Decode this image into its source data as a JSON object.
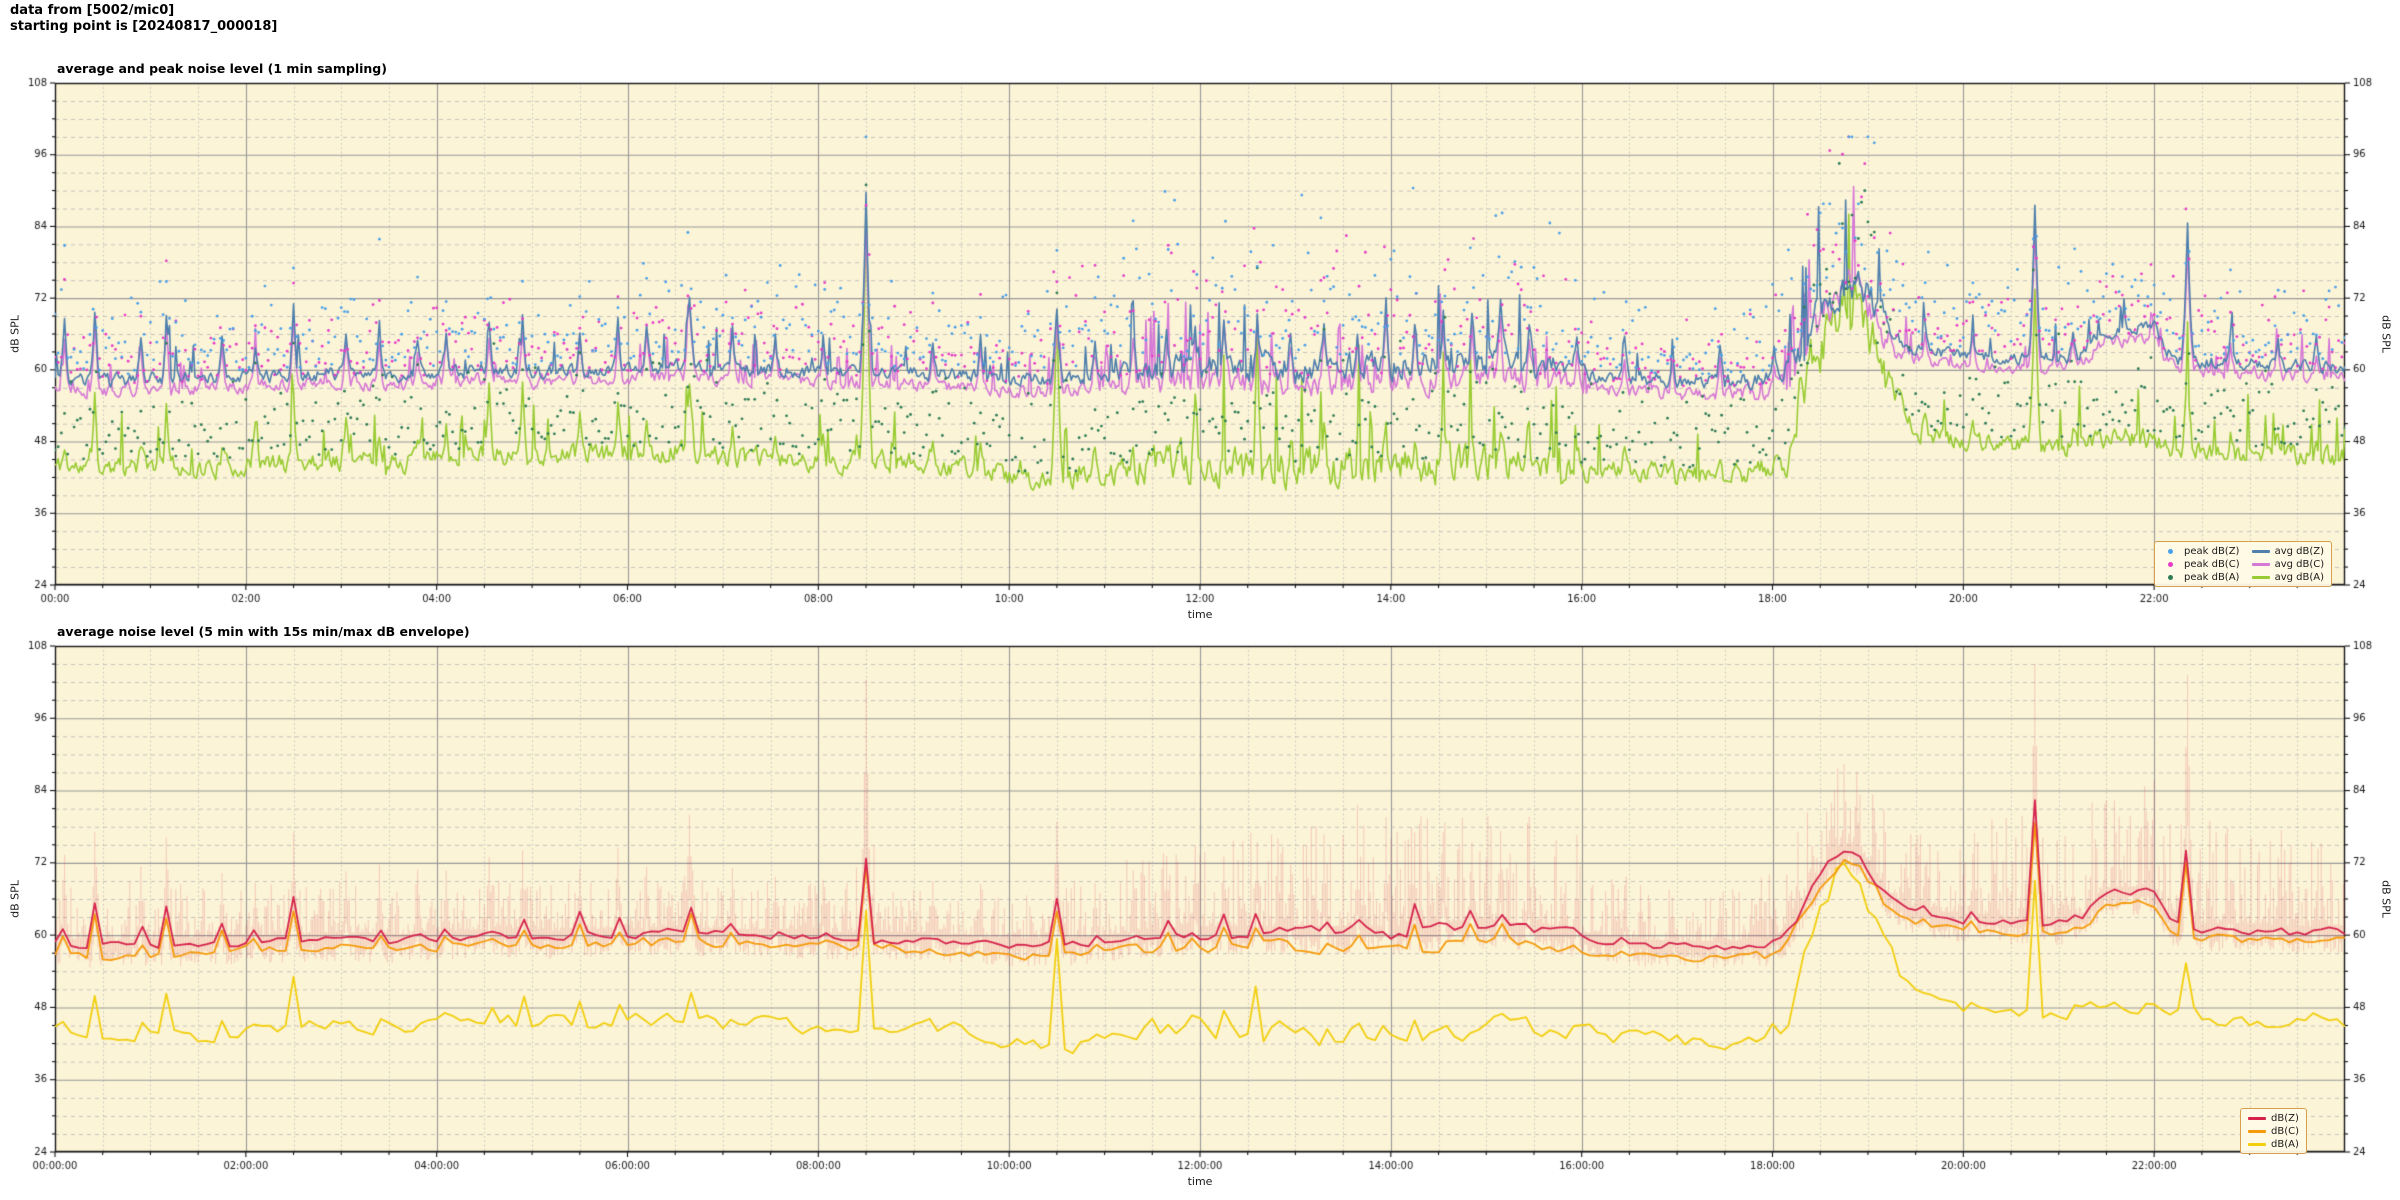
{
  "header": {
    "line1": "data from [5002/mic0]",
    "line2": "starting point is [20240817_000018]"
  },
  "colors": {
    "figure_bg": "#ffffff",
    "axes_bg": "#fcf4d7",
    "grid_major": "#989898",
    "grid_minor": "#b7b7b7",
    "spine": "#141414",
    "tick_text": "#1a1a1a",
    "avg_z": "#4e7fad",
    "avg_c": "#d678d6",
    "avg_a": "#99cc33",
    "peak_z": "#4aa0e8",
    "peak_c": "#e63cc8",
    "peak_a": "#2e7d55",
    "bot_z": "#d6234c",
    "bot_c": "#f59b0b",
    "bot_a": "#f2cf0e",
    "envelope": "rgba(214,50,76,0.20)",
    "legend_border": "#d79f4d",
    "legend_bg": "#fffae6"
  },
  "chart_data": [
    {
      "type": "line+scatter",
      "title": "average and peak noise level (1 min sampling)",
      "xlabel": "time",
      "ylabel_left": "dB SPL",
      "ylabel_right": "dB SPL",
      "ylim": [
        24,
        108
      ],
      "xlim_hours": [
        0,
        24
      ],
      "y_ticks": [
        24,
        36,
        48,
        60,
        72,
        84,
        96,
        108
      ],
      "y_minor_step": 3,
      "x_tick_hours": [
        0,
        2,
        4,
        6,
        8,
        10,
        12,
        14,
        16,
        18,
        20,
        22
      ],
      "x_tick_labels": [
        "00:00",
        "02:00",
        "04:00",
        "06:00",
        "08:00",
        "10:00",
        "12:00",
        "14:00",
        "16:00",
        "18:00",
        "20:00",
        "22:00"
      ],
      "x_minor_step_hours": 0.5,
      "grid": {
        "major": true,
        "minor": true
      },
      "legend": {
        "position": "lower right",
        "entries": [
          {
            "type": "dot",
            "color_key": "peak_z",
            "label": "peak dB(Z)"
          },
          {
            "type": "line",
            "color_key": "avg_z",
            "label": "avg dB(Z)"
          },
          {
            "type": "dot",
            "color_key": "peak_c",
            "label": "peak dB(C)"
          },
          {
            "type": "line",
            "color_key": "avg_c",
            "label": "avg dB(C)"
          },
          {
            "type": "dot",
            "color_key": "peak_a",
            "label": "peak dB(A)"
          },
          {
            "type": "line",
            "color_key": "avg_a",
            "label": "avg dB(A)"
          }
        ]
      },
      "series": [
        {
          "name": "avg dB(Z)",
          "style": "line",
          "color_key": "avg_z",
          "channel": "z"
        },
        {
          "name": "avg dB(C)",
          "style": "line",
          "color_key": "avg_c",
          "channel": "c"
        },
        {
          "name": "avg dB(A)",
          "style": "line",
          "color_key": "avg_a",
          "channel": "a"
        },
        {
          "name": "peak dB(Z)",
          "style": "scatter",
          "color_key": "peak_z",
          "channel": "z"
        },
        {
          "name": "peak dB(C)",
          "style": "scatter",
          "color_key": "peak_c",
          "channel": "c"
        },
        {
          "name": "peak dB(A)",
          "style": "scatter",
          "color_key": "peak_a",
          "channel": "a"
        }
      ],
      "sampling_minutes": 1
    },
    {
      "type": "line+band",
      "title": "average noise level (5 min with 15s min/max dB envelope)",
      "xlabel": "time",
      "ylabel_left": "dB SPL",
      "ylabel_right": "dB SPL",
      "ylim": [
        24,
        108
      ],
      "xlim_hours": [
        0,
        24
      ],
      "y_ticks": [
        24,
        36,
        48,
        60,
        72,
        84,
        96,
        108
      ],
      "y_minor_step": 3,
      "x_tick_hours": [
        0,
        2,
        4,
        6,
        8,
        10,
        12,
        14,
        16,
        18,
        20,
        22
      ],
      "x_tick_labels": [
        "00:00:00",
        "02:00:00",
        "04:00:00",
        "06:00:00",
        "08:00:00",
        "10:00:00",
        "12:00:00",
        "14:00:00",
        "16:00:00",
        "18:00:00",
        "20:00:00",
        "22:00:00"
      ],
      "x_minor_step_hours": 0.5,
      "grid": {
        "major": true,
        "minor": true
      },
      "legend": {
        "position": "lower right",
        "entries": [
          {
            "type": "line",
            "color_key": "bot_z",
            "label": "dB(Z)"
          },
          {
            "type": "line",
            "color_key": "bot_c",
            "label": "dB(C)"
          },
          {
            "type": "line",
            "color_key": "bot_a",
            "label": "dB(A)"
          }
        ]
      },
      "series": [
        {
          "name": "dB(Z)",
          "style": "line",
          "color_key": "bot_z",
          "channel": "z"
        },
        {
          "name": "dB(C)",
          "style": "line",
          "color_key": "bot_c",
          "channel": "c"
        },
        {
          "name": "dB(A)",
          "style": "line",
          "color_key": "bot_a",
          "channel": "a"
        }
      ],
      "sampling_minutes": 5,
      "envelope_seconds": 15
    }
  ],
  "noise_model": {
    "comment": "Estimated dB SPL levels read off the plots. baseline: [hour, avg dB(Z), avg dB(C), avg dB(A)]. events: [hour, half-width min, +dB Z, +dB C, +dB A, bottom-chart scale].",
    "baseline": [
      [
        0,
        58.5,
        57,
        44
      ],
      [
        0.5,
        58,
        56.5,
        43.2
      ],
      [
        1,
        58.5,
        56.8,
        44
      ],
      [
        1.5,
        58.5,
        57,
        43.5
      ],
      [
        2,
        59,
        57.5,
        44
      ],
      [
        2.5,
        59,
        57.5,
        44.5
      ],
      [
        3,
        59.5,
        58,
        45
      ],
      [
        3.5,
        59,
        57.5,
        44.5
      ],
      [
        4,
        59.5,
        58,
        45
      ],
      [
        4.5,
        60,
        58.5,
        46
      ],
      [
        5,
        59.5,
        58,
        45.5
      ],
      [
        5.5,
        60,
        58.5,
        46
      ],
      [
        6,
        60,
        58.5,
        46
      ],
      [
        6.5,
        60.5,
        59,
        46.5
      ],
      [
        7,
        60,
        58.5,
        45.5
      ],
      [
        7.5,
        60,
        58.5,
        45
      ],
      [
        8,
        59.5,
        58,
        44.5
      ],
      [
        8.7,
        59.5,
        58,
        44.8
      ],
      [
        9,
        59.5,
        57.5,
        44.5
      ],
      [
        9.5,
        59,
        57,
        44
      ],
      [
        10,
        58.5,
        56.5,
        42
      ],
      [
        10.5,
        58.5,
        56.5,
        41.5
      ],
      [
        11,
        59,
        57,
        42
      ],
      [
        11.5,
        60,
        57.5,
        44
      ],
      [
        12,
        60.5,
        58,
        44.5
      ],
      [
        12.5,
        60.5,
        58,
        44
      ],
      [
        13,
        60.5,
        58,
        43.5
      ],
      [
        13.5,
        60.5,
        58,
        43.5
      ],
      [
        14,
        60.5,
        58,
        43.8
      ],
      [
        14.5,
        61,
        58.5,
        44
      ],
      [
        15,
        61.5,
        59,
        44.5
      ],
      [
        15.4,
        61,
        58.5,
        44
      ],
      [
        15.8,
        60.5,
        58,
        43.8
      ],
      [
        16,
        59.5,
        57,
        43.5
      ],
      [
        16.5,
        58.5,
        56.5,
        43
      ],
      [
        17,
        58,
        56,
        42.5
      ],
      [
        17.5,
        58,
        56,
        42.5
      ],
      [
        18,
        58.5,
        56.5,
        43
      ],
      [
        18.15,
        60,
        58.5,
        45
      ],
      [
        18.3,
        64,
        62.5,
        56
      ],
      [
        18.45,
        68,
        66.5,
        63
      ],
      [
        18.6,
        72,
        70.5,
        68
      ],
      [
        18.75,
        74.5,
        73,
        71.5
      ],
      [
        18.9,
        73.5,
        72,
        70
      ],
      [
        19.05,
        70.5,
        69,
        65
      ],
      [
        19.2,
        66.5,
        65,
        59
      ],
      [
        19.35,
        64.5,
        63,
        53
      ],
      [
        19.5,
        63.5,
        62,
        50
      ],
      [
        19.75,
        63,
        61.5,
        48.5
      ],
      [
        20,
        62.5,
        61,
        48
      ],
      [
        20.25,
        62.5,
        61,
        47.8
      ],
      [
        20.5,
        62,
        60.5,
        47.5
      ],
      [
        21,
        62,
        60.5,
        47
      ],
      [
        21.25,
        62.5,
        61,
        47.5
      ],
      [
        21.45,
        66.5,
        64.5,
        48.5
      ],
      [
        21.6,
        67,
        65,
        48.5
      ],
      [
        22,
        67,
        65,
        48.5
      ],
      [
        22.1,
        64,
        62,
        47.5
      ],
      [
        22.2,
        62,
        60.5,
        47
      ],
      [
        22.5,
        61,
        59.5,
        46.5
      ],
      [
        23,
        61,
        59.5,
        46
      ],
      [
        23.5,
        60.5,
        59,
        45.5
      ],
      [
        24,
        60.5,
        59,
        45.5
      ]
    ],
    "events": [
      [
        0.1,
        3,
        9,
        8.5,
        3,
        0.6
      ],
      [
        0.42,
        3,
        13,
        12.5,
        14,
        0.6
      ],
      [
        0.9,
        3,
        8,
        7.5,
        4,
        0.55
      ],
      [
        1.17,
        3,
        12,
        11.5,
        11,
        0.6
      ],
      [
        1.75,
        3,
        7,
        6.5,
        3,
        0.5
      ],
      [
        2.1,
        3,
        6,
        6,
        8,
        0.5
      ],
      [
        2.5,
        3,
        11,
        10.5,
        13,
        0.6
      ],
      [
        3.05,
        3,
        7,
        7,
        9,
        0.5
      ],
      [
        3.4,
        3,
        8,
        7.5,
        5,
        0.5
      ],
      [
        3.8,
        3,
        6,
        6,
        4,
        0.5
      ],
      [
        4.1,
        3,
        7,
        7,
        6,
        0.5
      ],
      [
        4.55,
        3,
        8,
        8,
        12,
        0.55
      ],
      [
        4.9,
        3,
        9,
        8.5,
        13,
        0.55
      ],
      [
        5.5,
        3,
        7,
        7,
        8,
        0.5
      ],
      [
        5.9,
        3,
        9,
        8.5,
        9,
        0.55
      ],
      [
        6.2,
        3,
        7,
        7,
        6,
        0.5
      ],
      [
        6.65,
        4,
        12,
        11.5,
        13,
        0.6
      ],
      [
        7.1,
        3,
        7,
        7,
        5,
        0.5
      ],
      [
        7.55,
        3,
        6,
        6,
        4,
        0.5
      ],
      [
        8.05,
        3,
        6,
        6,
        5,
        0.5
      ],
      [
        8.5,
        4,
        29.5,
        28,
        43,
        0.47
      ],
      [
        9.2,
        3,
        6,
        6,
        4,
        0.5
      ],
      [
        9.7,
        3,
        6,
        6,
        4,
        0.5
      ],
      [
        10.5,
        4,
        12.5,
        12,
        29,
        0.6
      ],
      [
        10.9,
        3,
        6,
        6,
        5,
        0.5
      ],
      [
        11.3,
        3,
        7,
        7,
        6,
        0.5
      ],
      [
        11.65,
        3,
        8,
        7.5,
        7,
        0.55
      ],
      [
        11.95,
        3,
        9,
        8.5,
        8,
        0.55
      ],
      [
        12.25,
        3,
        8,
        8,
        5,
        0.5
      ],
      [
        12.6,
        3,
        9,
        8.5,
        25,
        0.6
      ],
      [
        12.95,
        3,
        7,
        7,
        5,
        0.5
      ],
      [
        13.3,
        3,
        9,
        8.5,
        6,
        0.55
      ],
      [
        13.65,
        3,
        8,
        8,
        5,
        0.5
      ],
      [
        13.95,
        3,
        9,
        9,
        7,
        0.55
      ],
      [
        14.25,
        3,
        8,
        8,
        6,
        0.5
      ],
      [
        14.55,
        3,
        10,
        9.5,
        8,
        0.55
      ],
      [
        14.85,
        3,
        9,
        8.5,
        6,
        0.5
      ],
      [
        15.15,
        3,
        10,
        9.5,
        9,
        0.55
      ],
      [
        15.45,
        3,
        8,
        8,
        6,
        0.5
      ],
      [
        15.95,
        3,
        7,
        7,
        5,
        0.5
      ],
      [
        16.45,
        3,
        6,
        6,
        4,
        0.5
      ],
      [
        16.95,
        3,
        5,
        5,
        4,
        0.5
      ],
      [
        17.45,
        3,
        5,
        5,
        4,
        0.5
      ],
      [
        18.02,
        3,
        5,
        5,
        4,
        0.5
      ],
      [
        19.6,
        3,
        5,
        5,
        3,
        0.5
      ],
      [
        20.1,
        3,
        5,
        5,
        3,
        0.5
      ],
      [
        20.75,
        4,
        26,
        24,
        27.5,
        0.78
      ],
      [
        21.15,
        3,
        4,
        4,
        3,
        0.5
      ],
      [
        22.35,
        4,
        22,
        21,
        13,
        0.9
      ],
      [
        22.8,
        3,
        5,
        5,
        3,
        0.5
      ],
      [
        23.3,
        3,
        4,
        4,
        3,
        0.5
      ],
      [
        23.7,
        3,
        4,
        4,
        3,
        0.5
      ]
    ],
    "busy": [
      [
        0,
        1
      ],
      [
        8,
        1
      ],
      [
        11,
        1
      ],
      [
        11.5,
        2
      ],
      [
        15.5,
        2
      ],
      [
        16.2,
        0.9
      ],
      [
        18.1,
        1.3
      ],
      [
        18.3,
        2.8
      ],
      [
        19.1,
        2.8
      ],
      [
        19.4,
        1
      ],
      [
        20.4,
        0.9
      ],
      [
        21.4,
        1
      ],
      [
        22,
        1
      ],
      [
        24,
        1
      ]
    ],
    "peak_spread_zc": [
      [
        0,
        5
      ],
      [
        2,
        5.5
      ],
      [
        4,
        5.5
      ],
      [
        6,
        6
      ],
      [
        8,
        6
      ],
      [
        9,
        5.5
      ],
      [
        10,
        6
      ],
      [
        11,
        8
      ],
      [
        11.5,
        10
      ],
      [
        13,
        10.5
      ],
      [
        14,
        10.5
      ],
      [
        15,
        10.5
      ],
      [
        15.8,
        8
      ],
      [
        16.5,
        5
      ],
      [
        17.5,
        4.5
      ],
      [
        18.2,
        10
      ],
      [
        18.6,
        13
      ],
      [
        19.2,
        10
      ],
      [
        19.6,
        5.5
      ],
      [
        20.5,
        5.5
      ],
      [
        21,
        6
      ],
      [
        21.6,
        5
      ],
      [
        22.5,
        6
      ],
      [
        23,
        5.5
      ],
      [
        24,
        5.5
      ]
    ],
    "peak_spread_a": [
      [
        0,
        5
      ],
      [
        4,
        5.5
      ],
      [
        8,
        5.5
      ],
      [
        10,
        6.5
      ],
      [
        11,
        7
      ],
      [
        13,
        7.5
      ],
      [
        15,
        7.5
      ],
      [
        16.5,
        5.5
      ],
      [
        18,
        6
      ],
      [
        18.6,
        10
      ],
      [
        19.2,
        9
      ],
      [
        19.6,
        6
      ],
      [
        21,
        6
      ],
      [
        22,
        6
      ],
      [
        24,
        5.5
      ]
    ],
    "envelope_amp": [
      [
        0,
        9
      ],
      [
        1,
        10
      ],
      [
        2,
        9
      ],
      [
        4,
        8
      ],
      [
        6,
        8
      ],
      [
        8.2,
        8
      ],
      [
        8.5,
        17
      ],
      [
        8.8,
        8
      ],
      [
        9.5,
        7
      ],
      [
        10.3,
        8
      ],
      [
        11,
        11
      ],
      [
        11.5,
        16
      ],
      [
        12.5,
        16
      ],
      [
        13.5,
        18
      ],
      [
        14.5,
        18
      ],
      [
        15.2,
        18
      ],
      [
        16,
        13
      ],
      [
        16.8,
        9
      ],
      [
        17.5,
        8
      ],
      [
        18.1,
        12
      ],
      [
        18.5,
        16
      ],
      [
        19.2,
        14
      ],
      [
        19.8,
        14
      ],
      [
        20.5,
        20
      ],
      [
        21,
        16
      ],
      [
        21.5,
        18
      ],
      [
        22.2,
        22
      ],
      [
        22.6,
        18
      ],
      [
        23.2,
        16
      ],
      [
        24,
        14
      ]
    ]
  }
}
